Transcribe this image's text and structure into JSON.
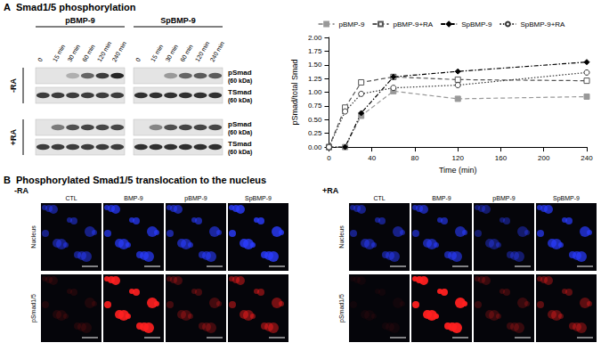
{
  "panel_a": {
    "label": "A",
    "title": "Smad1/5 phosphorylation",
    "groups": [
      "pBMP-9",
      "SpBMP-9"
    ],
    "times": [
      "0",
      "15 min",
      "30 min",
      "60 min",
      "120 min",
      "240 min"
    ],
    "rows": [
      {
        "name": "-RA",
        "blots": [
          {
            "label": "pSmad",
            "size": "(60 kDa)",
            "intensity": [
              [
                0,
                0,
                0.25,
                0.6,
                0.8,
                0.9
              ],
              [
                0,
                0,
                0.35,
                0.6,
                0.65,
                0.65
              ]
            ]
          },
          {
            "label": "TSmad",
            "size": "(60 kDa)",
            "intensity": [
              [
                0.8,
                0.8,
                0.8,
                0.8,
                0.8,
                0.8
              ],
              [
                0.85,
                0.85,
                0.85,
                0.85,
                0.85,
                0.85
              ]
            ]
          }
        ]
      },
      {
        "name": "+RA",
        "blots": [
          {
            "label": "pSmad",
            "size": "(60 kDa)",
            "intensity": [
              [
                0,
                0.5,
                0.7,
                0.75,
                0.75,
                0.75
              ],
              [
                0,
                0.45,
                0.7,
                0.75,
                0.75,
                0.75
              ]
            ]
          },
          {
            "label": "TSmad",
            "size": "(60 kDa)",
            "intensity": [
              [
                0.8,
                0.8,
                0.8,
                0.8,
                0.8,
                0.8
              ],
              [
                0.85,
                0.85,
                0.85,
                0.85,
                0.85,
                0.85
              ]
            ]
          }
        ]
      }
    ]
  },
  "chart_data": {
    "type": "line",
    "x_label": "Time (min)",
    "y_label": "pSmad/total Smad",
    "legend": "top",
    "xlim": [
      0,
      240
    ],
    "xticks": [
      0,
      40,
      80,
      120,
      160,
      200,
      240
    ],
    "ylim": [
      0,
      2
    ],
    "yticks": [
      {
        "value": 0,
        "label": "0.00"
      },
      {
        "value": 0.25,
        "label": "0.25"
      },
      {
        "value": 0.5,
        "label": "0.50"
      },
      {
        "value": 0.75,
        "label": "0.75"
      },
      {
        "value": 1,
        "label": "1.00"
      },
      {
        "value": 1.25,
        "label": "1.25"
      },
      {
        "value": 1.5,
        "label": "1.50"
      },
      {
        "value": 1.75,
        "label": "1.75"
      },
      {
        "value": 2,
        "label": "2.00"
      }
    ],
    "grid": false,
    "x": [
      0,
      15,
      30,
      60,
      120,
      240
    ],
    "series": [
      {
        "name": "pBMP-9",
        "color": "#999999",
        "marker": "square",
        "line_style": "dashed",
        "values": [
          0,
          0,
          0.57,
          1.02,
          0.88,
          0.92
        ]
      },
      {
        "name": "pBMP-9+RA",
        "color": "#555555",
        "marker": "open_square",
        "line_style": "dashed",
        "values": [
          0,
          0.72,
          1.18,
          1.28,
          1.23,
          1.21
        ]
      },
      {
        "name": "SpBMP-9",
        "color": "#000000",
        "marker": "diamond",
        "line_style": "dashdot",
        "values": [
          0,
          0,
          0.62,
          1.28,
          1.38,
          1.55
        ]
      },
      {
        "name": "SpBMP-9+RA",
        "color": "#333333",
        "marker": "open_circle",
        "line_style": "dotted",
        "values": [
          0,
          0.65,
          0.97,
          1.08,
          1.13,
          1.36
        ]
      }
    ]
  },
  "panel_b": {
    "label": "B",
    "title": "Phosphorylated Smad1/5 translocation to the nucleus",
    "columns": [
      "CTL",
      "BMP-9",
      "pBMP-9",
      "SpBMP-9"
    ],
    "groups": [
      {
        "name": "-RA",
        "rows": [
          {
            "label": "Nucleus",
            "color": "#2a3cff",
            "intensity": [
              0.5,
              0.7,
              0.6,
              0.8
            ]
          },
          {
            "label": "pSmad1/5",
            "color": "#ff2020",
            "intensity": [
              0.1,
              0.9,
              0.25,
              0.45
            ]
          }
        ]
      },
      {
        "name": "+RA",
        "rows": [
          {
            "label": "Nucleus",
            "color": "#2a3cff",
            "intensity": [
              0.5,
              0.6,
              0.4,
              0.7
            ]
          },
          {
            "label": "pSmad1/5",
            "color": "#ff2020",
            "intensity": [
              0.05,
              0.95,
              0.2,
              0.35
            ]
          }
        ]
      }
    ]
  }
}
